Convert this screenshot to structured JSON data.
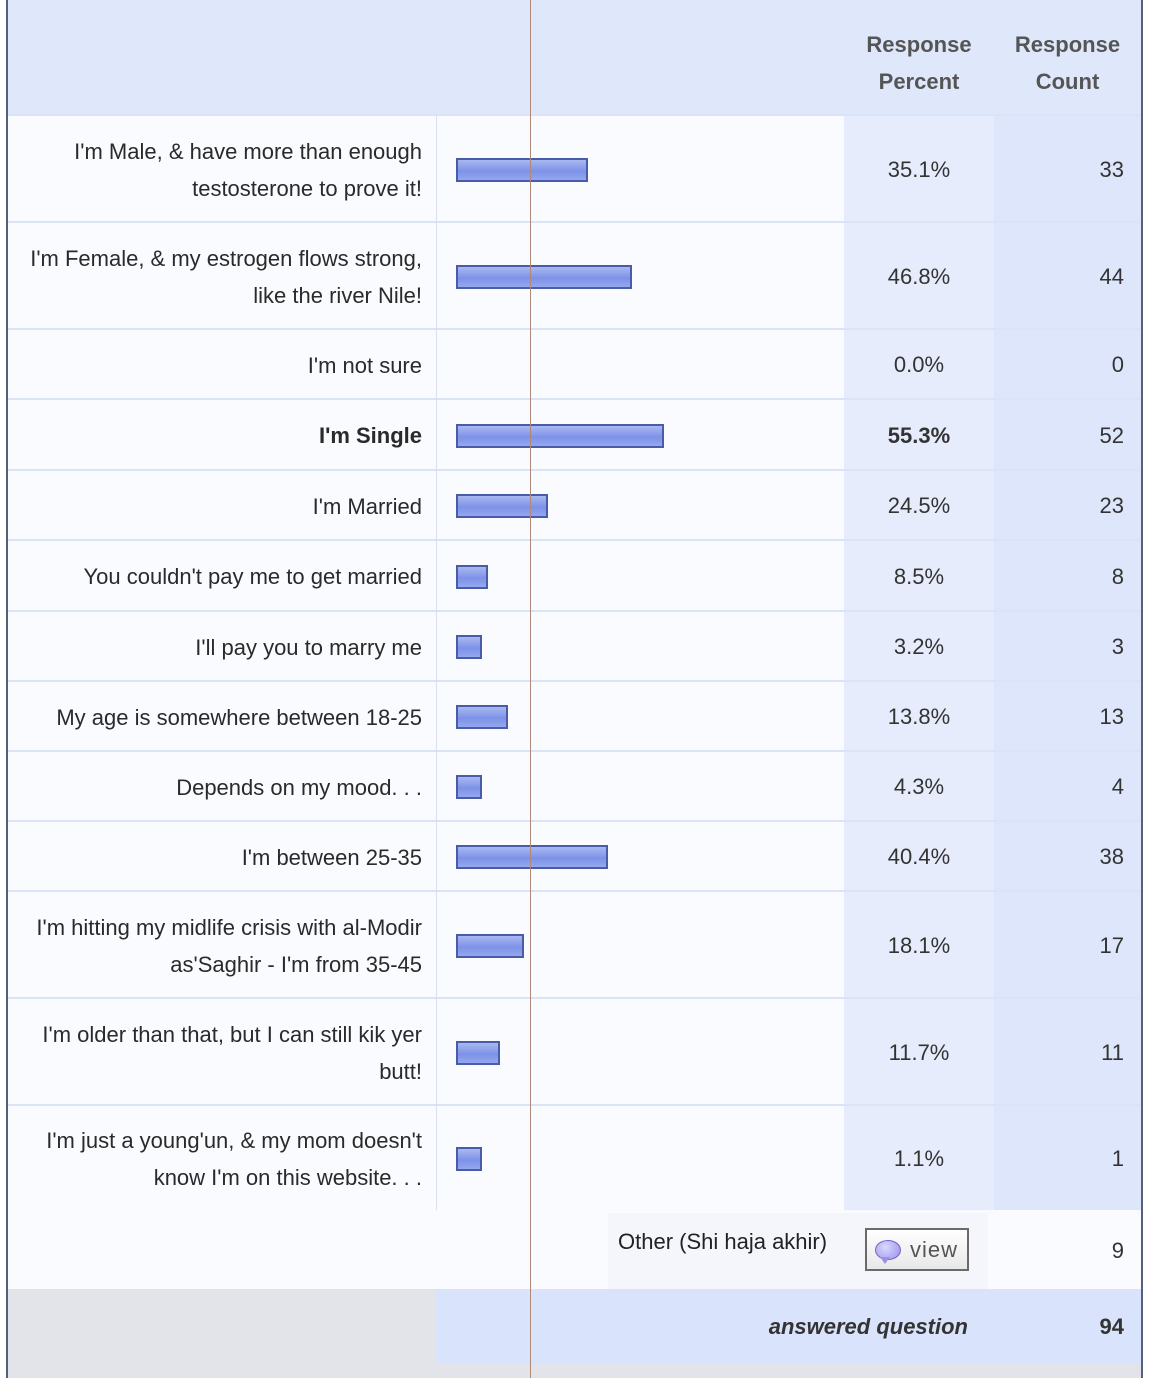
{
  "header": {
    "percent_label": "Response Percent",
    "count_label": "Response Count"
  },
  "rows": [
    {
      "label": "I'm Male, & have more than enough testosterone to prove it!",
      "percent": "35.1%",
      "count": "33",
      "value": 35.1,
      "bold": false
    },
    {
      "label": "I'm Female, & my estrogen flows strong, like the river Nile!",
      "percent": "46.8%",
      "count": "44",
      "value": 46.8,
      "bold": false
    },
    {
      "label": "I'm not sure",
      "percent": "0.0%",
      "count": "0",
      "value": 0.0,
      "bold": false
    },
    {
      "label": "I'm Single",
      "percent": "55.3%",
      "count": "52",
      "value": 55.3,
      "bold": true
    },
    {
      "label": "I'm Married",
      "percent": "24.5%",
      "count": "23",
      "value": 24.5,
      "bold": false
    },
    {
      "label": "You couldn't pay me to get married",
      "percent": "8.5%",
      "count": "8",
      "value": 8.5,
      "bold": false
    },
    {
      "label": "I'll pay you to marry me",
      "percent": "3.2%",
      "count": "3",
      "value": 3.2,
      "bold": false
    },
    {
      "label": "My age is somewhere between 18-25",
      "percent": "13.8%",
      "count": "13",
      "value": 13.8,
      "bold": false
    },
    {
      "label": "Depends on my mood. . .",
      "percent": "4.3%",
      "count": "4",
      "value": 4.3,
      "bold": false
    },
    {
      "label": "I'm between 25-35",
      "percent": "40.4%",
      "count": "38",
      "value": 40.4,
      "bold": false
    },
    {
      "label": "I'm hitting my midlife crisis with al-Modir as'Saghir - I'm from 35-45",
      "percent": "18.1%",
      "count": "17",
      "value": 18.1,
      "bold": false
    },
    {
      "label": "I'm older than that, but I can still kik yer butt!",
      "percent": "11.7%",
      "count": "11",
      "value": 11.7,
      "bold": false
    },
    {
      "label": "I'm just a young'un, & my mom doesn't know I'm on this website. . .",
      "percent": "1.1%",
      "count": "1",
      "value": 1.1,
      "bold": false
    }
  ],
  "other": {
    "label": "Other (Shi haja akhir)",
    "view_label": "view",
    "count": "9"
  },
  "footer": {
    "answered_label": "answered question",
    "answered_count": "94"
  },
  "colors": {
    "bar_fill": "#7d92e8",
    "bar_border": "#4a5ca8",
    "header_bg": "#dfe7fb"
  }
}
